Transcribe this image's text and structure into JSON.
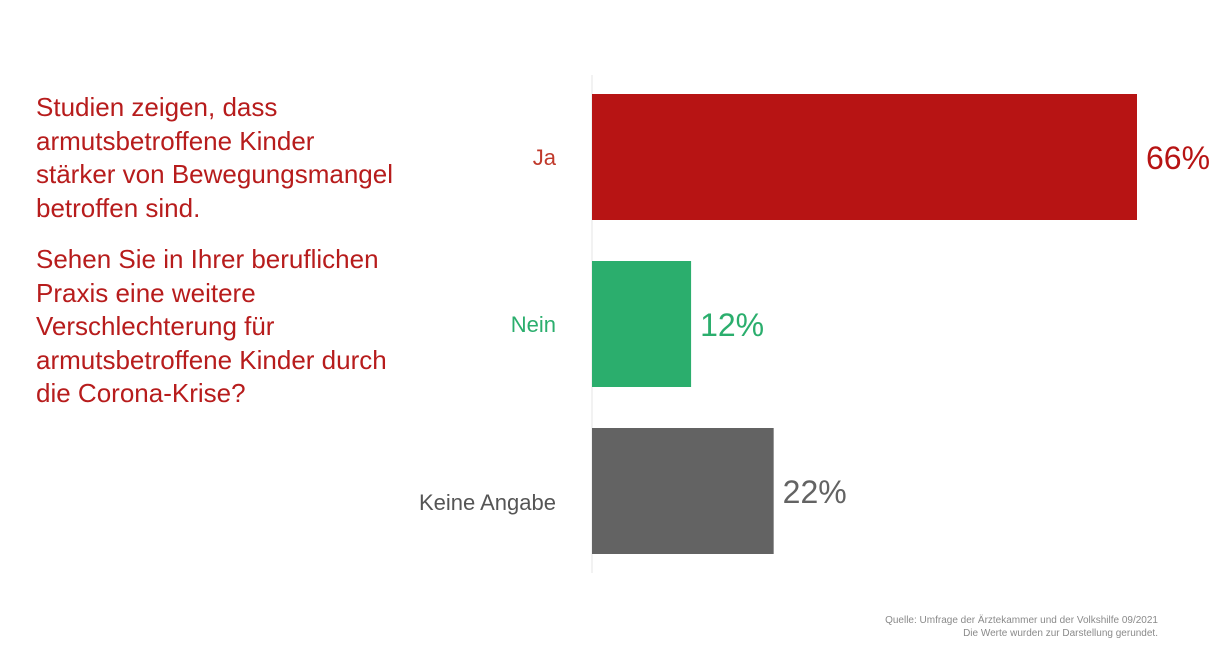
{
  "question": {
    "intro": "Studien zeigen, dass armutsbetroffene Kinder stärker von Bewegungsmangel betroffen sind.",
    "text": "Sehen Sie in Ihrer beruflichen Praxis eine weitere Verschlechterung für armutsbetroffene Kinder durch die Corona-Krise?"
  },
  "chart_data": {
    "type": "bar",
    "orientation": "horizontal",
    "categories": [
      "Ja",
      "Nein",
      "Keine Angabe"
    ],
    "values": [
      66,
      12,
      22
    ],
    "value_labels": [
      "66%",
      "12%",
      "22%"
    ],
    "colors": [
      "#b71414",
      "#2bae6d",
      "#636363"
    ],
    "label_colors": [
      "#c0392b",
      "#2bae6d",
      "#555555"
    ],
    "xlim": [
      0,
      66
    ],
    "grid": false,
    "legend": "none"
  },
  "source": {
    "line1": "Quelle: Umfrage der Ärztekammer und der Volkshilfe 09/2021",
    "line2": "Die Werte wurden zur Darstellung gerundet."
  }
}
